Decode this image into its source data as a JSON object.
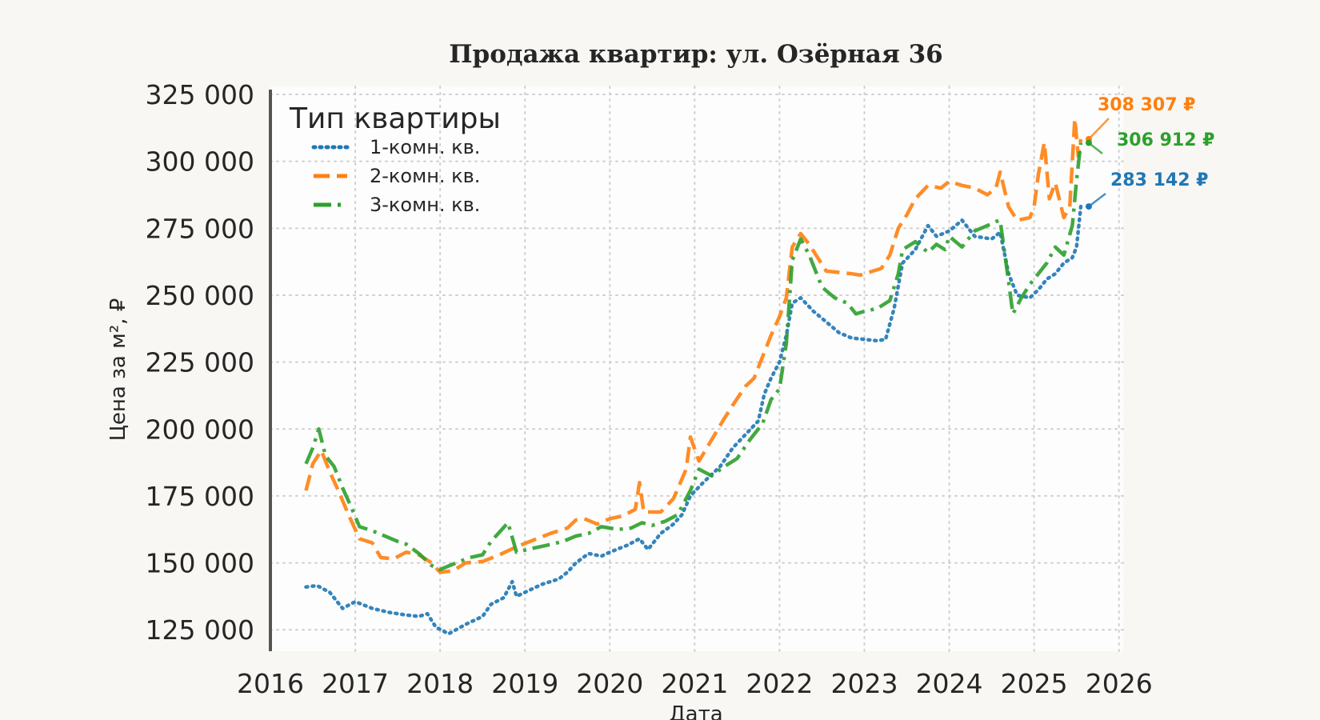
{
  "chart_data": {
    "type": "line",
    "title": "Продажа квартир: ул. Озёрная 36",
    "xlabel": "Дата",
    "ylabel": "Цена за м², ₽",
    "x_ticks": [
      "2016",
      "2017",
      "2018",
      "2019",
      "2020",
      "2021",
      "2022",
      "2023",
      "2024",
      "2025",
      "2026"
    ],
    "y_ticks": [
      "125 000",
      "150 000",
      "175 000",
      "200 000",
      "225 000",
      "250 000",
      "275 000",
      "300 000",
      "325 000"
    ],
    "xlim": [
      2016.0,
      2026.05
    ],
    "ylim": [
      117000,
      328000
    ],
    "grid": true,
    "legend": {
      "title": "Тип квартиры",
      "position": "top-left"
    },
    "series": [
      {
        "name": "1-комн. кв.",
        "color": "#1f77b4",
        "style": "dotted",
        "end_label": "283 142 ₽",
        "points": [
          [
            2016.42,
            141000
          ],
          [
            2016.55,
            141500
          ],
          [
            2016.7,
            139000
          ],
          [
            2016.85,
            133000
          ],
          [
            2017.0,
            135500
          ],
          [
            2017.2,
            133000
          ],
          [
            2017.4,
            131500
          ],
          [
            2017.6,
            130500
          ],
          [
            2017.75,
            130000
          ],
          [
            2017.85,
            131000
          ],
          [
            2017.95,
            126000
          ],
          [
            2018.1,
            123500
          ],
          [
            2018.3,
            127000
          ],
          [
            2018.5,
            130000
          ],
          [
            2018.6,
            134500
          ],
          [
            2018.75,
            137000
          ],
          [
            2018.85,
            143000
          ],
          [
            2018.9,
            137500
          ],
          [
            2019.0,
            139000
          ],
          [
            2019.2,
            142000
          ],
          [
            2019.4,
            144000
          ],
          [
            2019.5,
            146500
          ],
          [
            2019.6,
            150000
          ],
          [
            2019.75,
            153500
          ],
          [
            2019.9,
            152500
          ],
          [
            2020.0,
            154000
          ],
          [
            2020.2,
            156500
          ],
          [
            2020.35,
            159000
          ],
          [
            2020.45,
            155000
          ],
          [
            2020.6,
            161000
          ],
          [
            2020.75,
            164500
          ],
          [
            2020.85,
            168000
          ],
          [
            2020.95,
            175000
          ],
          [
            2021.1,
            180000
          ],
          [
            2021.3,
            186000
          ],
          [
            2021.45,
            193000
          ],
          [
            2021.6,
            198000
          ],
          [
            2021.75,
            203000
          ],
          [
            2021.82,
            213000
          ],
          [
            2021.9,
            219000
          ],
          [
            2022.0,
            225000
          ],
          [
            2022.08,
            235000
          ],
          [
            2022.15,
            247000
          ],
          [
            2022.25,
            249000
          ],
          [
            2022.4,
            244000
          ],
          [
            2022.55,
            240000
          ],
          [
            2022.7,
            236000
          ],
          [
            2022.85,
            234000
          ],
          [
            2023.0,
            233500
          ],
          [
            2023.15,
            233000
          ],
          [
            2023.25,
            233500
          ],
          [
            2023.35,
            245000
          ],
          [
            2023.45,
            262000
          ],
          [
            2023.6,
            267000
          ],
          [
            2023.75,
            276000
          ],
          [
            2023.85,
            272000
          ],
          [
            2024.0,
            274000
          ],
          [
            2024.15,
            278000
          ],
          [
            2024.3,
            272000
          ],
          [
            2024.5,
            271000
          ],
          [
            2024.6,
            273500
          ],
          [
            2024.7,
            258000
          ],
          [
            2024.8,
            250000
          ],
          [
            2024.95,
            249000
          ],
          [
            2025.05,
            252000
          ],
          [
            2025.15,
            256000
          ],
          [
            2025.25,
            258000
          ],
          [
            2025.35,
            262000
          ],
          [
            2025.45,
            264000
          ],
          [
            2025.5,
            268000
          ],
          [
            2025.55,
            283142
          ]
        ]
      },
      {
        "name": "2-комн. кв.",
        "color": "#ff7f0e",
        "style": "dashed",
        "end_label": "308 307 ₽",
        "points": [
          [
            2016.42,
            177000
          ],
          [
            2016.5,
            187000
          ],
          [
            2016.6,
            192000
          ],
          [
            2016.7,
            184000
          ],
          [
            2016.8,
            177000
          ],
          [
            2016.92,
            168000
          ],
          [
            2017.05,
            159000
          ],
          [
            2017.2,
            157500
          ],
          [
            2017.3,
            152000
          ],
          [
            2017.45,
            151500
          ],
          [
            2017.6,
            154000
          ],
          [
            2017.75,
            153000
          ],
          [
            2017.9,
            150000
          ],
          [
            2018.0,
            146500
          ],
          [
            2018.15,
            147000
          ],
          [
            2018.3,
            150000
          ],
          [
            2018.5,
            150500
          ],
          [
            2018.7,
            153000
          ],
          [
            2018.9,
            156000
          ],
          [
            2019.1,
            158500
          ],
          [
            2019.3,
            161000
          ],
          [
            2019.5,
            163000
          ],
          [
            2019.6,
            166000
          ],
          [
            2019.7,
            166500
          ],
          [
            2019.85,
            164500
          ],
          [
            2020.0,
            166500
          ],
          [
            2020.15,
            167500
          ],
          [
            2020.3,
            170000
          ],
          [
            2020.35,
            180000
          ],
          [
            2020.4,
            169000
          ],
          [
            2020.6,
            169000
          ],
          [
            2020.75,
            174000
          ],
          [
            2020.9,
            185000
          ],
          [
            2020.95,
            197000
          ],
          [
            2021.05,
            188000
          ],
          [
            2021.2,
            196000
          ],
          [
            2021.35,
            204000
          ],
          [
            2021.45,
            209000
          ],
          [
            2021.6,
            216000
          ],
          [
            2021.7,
            219000
          ],
          [
            2021.8,
            227000
          ],
          [
            2021.9,
            235000
          ],
          [
            2022.0,
            242000
          ],
          [
            2022.08,
            249000
          ],
          [
            2022.15,
            268000
          ],
          [
            2022.25,
            273000
          ],
          [
            2022.35,
            269000
          ],
          [
            2022.45,
            264000
          ],
          [
            2022.55,
            259000
          ],
          [
            2022.7,
            258500
          ],
          [
            2022.85,
            258000
          ],
          [
            2022.95,
            257500
          ],
          [
            2023.1,
            259000
          ],
          [
            2023.2,
            260000
          ],
          [
            2023.3,
            265000
          ],
          [
            2023.4,
            275000
          ],
          [
            2023.5,
            280000
          ],
          [
            2023.6,
            286000
          ],
          [
            2023.75,
            291000
          ],
          [
            2023.9,
            290000
          ],
          [
            2024.0,
            292500
          ],
          [
            2024.15,
            291000
          ],
          [
            2024.3,
            290000
          ],
          [
            2024.45,
            287500
          ],
          [
            2024.55,
            290000
          ],
          [
            2024.6,
            296000
          ],
          [
            2024.7,
            283000
          ],
          [
            2024.8,
            278000
          ],
          [
            2024.95,
            279000
          ],
          [
            2025.0,
            283000
          ],
          [
            2025.05,
            295000
          ],
          [
            2025.12,
            307000
          ],
          [
            2025.18,
            286000
          ],
          [
            2025.25,
            292000
          ],
          [
            2025.35,
            279000
          ],
          [
            2025.42,
            283000
          ],
          [
            2025.48,
            316000
          ],
          [
            2025.52,
            302000
          ],
          [
            2025.55,
            308307
          ]
        ]
      },
      {
        "name": "3-комн. кв.",
        "color": "#2ca02c",
        "style": "dashdot",
        "end_label": "306 912 ₽",
        "points": [
          [
            2016.42,
            187000
          ],
          [
            2016.5,
            193000
          ],
          [
            2016.57,
            200000
          ],
          [
            2016.65,
            190000
          ],
          [
            2016.75,
            186000
          ],
          [
            2016.85,
            178000
          ],
          [
            2016.95,
            171000
          ],
          [
            2017.05,
            163500
          ],
          [
            2017.2,
            162000
          ],
          [
            2017.35,
            160000
          ],
          [
            2017.5,
            158000
          ],
          [
            2017.6,
            157000
          ],
          [
            2017.75,
            153500
          ],
          [
            2017.9,
            149000
          ],
          [
            2018.0,
            147500
          ],
          [
            2018.15,
            149500
          ],
          [
            2018.35,
            152000
          ],
          [
            2018.5,
            153000
          ],
          [
            2018.6,
            158000
          ],
          [
            2018.8,
            165000
          ],
          [
            2018.9,
            154000
          ],
          [
            2019.1,
            155500
          ],
          [
            2019.25,
            156500
          ],
          [
            2019.45,
            158000
          ],
          [
            2019.6,
            160000
          ],
          [
            2019.75,
            161000
          ],
          [
            2019.9,
            163500
          ],
          [
            2020.1,
            162500
          ],
          [
            2020.25,
            163000
          ],
          [
            2020.38,
            165000
          ],
          [
            2020.5,
            164000
          ],
          [
            2020.65,
            165500
          ],
          [
            2020.8,
            168000
          ],
          [
            2020.95,
            177000
          ],
          [
            2021.05,
            185000
          ],
          [
            2021.2,
            182500
          ],
          [
            2021.35,
            186000
          ],
          [
            2021.5,
            189000
          ],
          [
            2021.65,
            196000
          ],
          [
            2021.8,
            202000
          ],
          [
            2021.9,
            211000
          ],
          [
            2022.0,
            215000
          ],
          [
            2022.08,
            232000
          ],
          [
            2022.15,
            263000
          ],
          [
            2022.25,
            271000
          ],
          [
            2022.35,
            265000
          ],
          [
            2022.5,
            253000
          ],
          [
            2022.65,
            249000
          ],
          [
            2022.8,
            247000
          ],
          [
            2022.9,
            243000
          ],
          [
            2023.0,
            244000
          ],
          [
            2023.15,
            245000
          ],
          [
            2023.3,
            248000
          ],
          [
            2023.4,
            258000
          ],
          [
            2023.45,
            267000
          ],
          [
            2023.6,
            270000
          ],
          [
            2023.75,
            266000
          ],
          [
            2023.85,
            269000
          ],
          [
            2023.95,
            267000
          ],
          [
            2024.0,
            272000
          ],
          [
            2024.15,
            268000
          ],
          [
            2024.3,
            274000
          ],
          [
            2024.45,
            276000
          ],
          [
            2024.55,
            277500
          ],
          [
            2024.6,
            278000
          ],
          [
            2024.7,
            255000
          ],
          [
            2024.75,
            243000
          ],
          [
            2024.85,
            249000
          ],
          [
            2024.95,
            254000
          ],
          [
            2025.05,
            258000
          ],
          [
            2025.15,
            262000
          ],
          [
            2025.25,
            268000
          ],
          [
            2025.35,
            265000
          ],
          [
            2025.45,
            276000
          ],
          [
            2025.5,
            293000
          ],
          [
            2025.55,
            306912
          ]
        ]
      }
    ]
  }
}
